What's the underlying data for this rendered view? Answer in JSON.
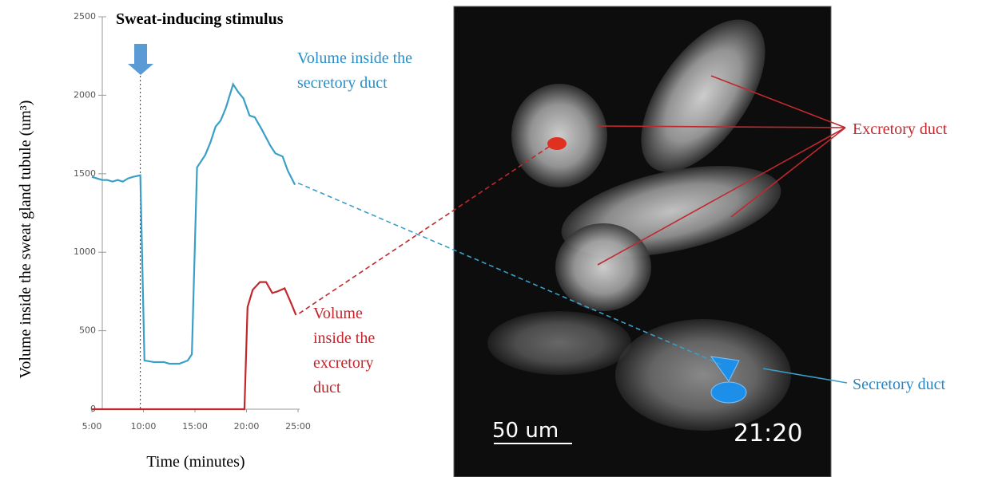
{
  "chart_data": {
    "type": "line",
    "title": "Sweat-inducing stimulus",
    "xlabel": "Time (minutes)",
    "ylabel": "Volume inside the sweat gland tubule (um³)",
    "stimulus_x": 9.7,
    "x": [
      5,
      5.5,
      6,
      6.5,
      7,
      7.5,
      8,
      8.5,
      9,
      9.7,
      10.1,
      11,
      12,
      12.5,
      13.5,
      14.3,
      14.7,
      15.2,
      16,
      16.5,
      17,
      17.5,
      18,
      18.7,
      19.2,
      19.7,
      20.3,
      20.8,
      21.5,
      22.3,
      22.8,
      23.5,
      24,
      24.7
    ],
    "series": [
      {
        "name": "Volume inside the secretory duct",
        "color": "#3a9fc8",
        "values": [
          1480,
          1470,
          1460,
          1460,
          1450,
          1460,
          1450,
          1470,
          1480,
          1490,
          310,
          300,
          300,
          290,
          290,
          310,
          350,
          1540,
          1620,
          1700,
          1800,
          1840,
          1920,
          2070,
          2020,
          1980,
          1870,
          1860,
          1780,
          1680,
          1630,
          1610,
          1520,
          1430
        ]
      },
      {
        "name": "Volume inside the excretory duct",
        "color": "#c0282d",
        "x": [
          5,
          19.8,
          20.1,
          20.6,
          21.3,
          21.9,
          22.5,
          23,
          23.7,
          24.3,
          24.8
        ],
        "values": [
          0,
          0,
          650,
          760,
          810,
          810,
          740,
          750,
          770,
          680,
          600
        ]
      }
    ],
    "xlim": [
      5,
      25
    ],
    "xticks": [
      {
        "value": 5,
        "label": "5:00"
      },
      {
        "value": 10,
        "label": "10:00"
      },
      {
        "value": 15,
        "label": "15:00"
      },
      {
        "value": 20,
        "label": "20:00"
      },
      {
        "value": 25,
        "label": "25:00"
      }
    ],
    "ylim": [
      0,
      2500
    ],
    "yticks": [
      0,
      500,
      1000,
      1500,
      2000,
      2500
    ]
  },
  "image": {
    "excretory_label": "Excretory duct",
    "secretory_label": "Secretory duct",
    "scale_bar": "50 um",
    "timestamp": "21:20"
  }
}
